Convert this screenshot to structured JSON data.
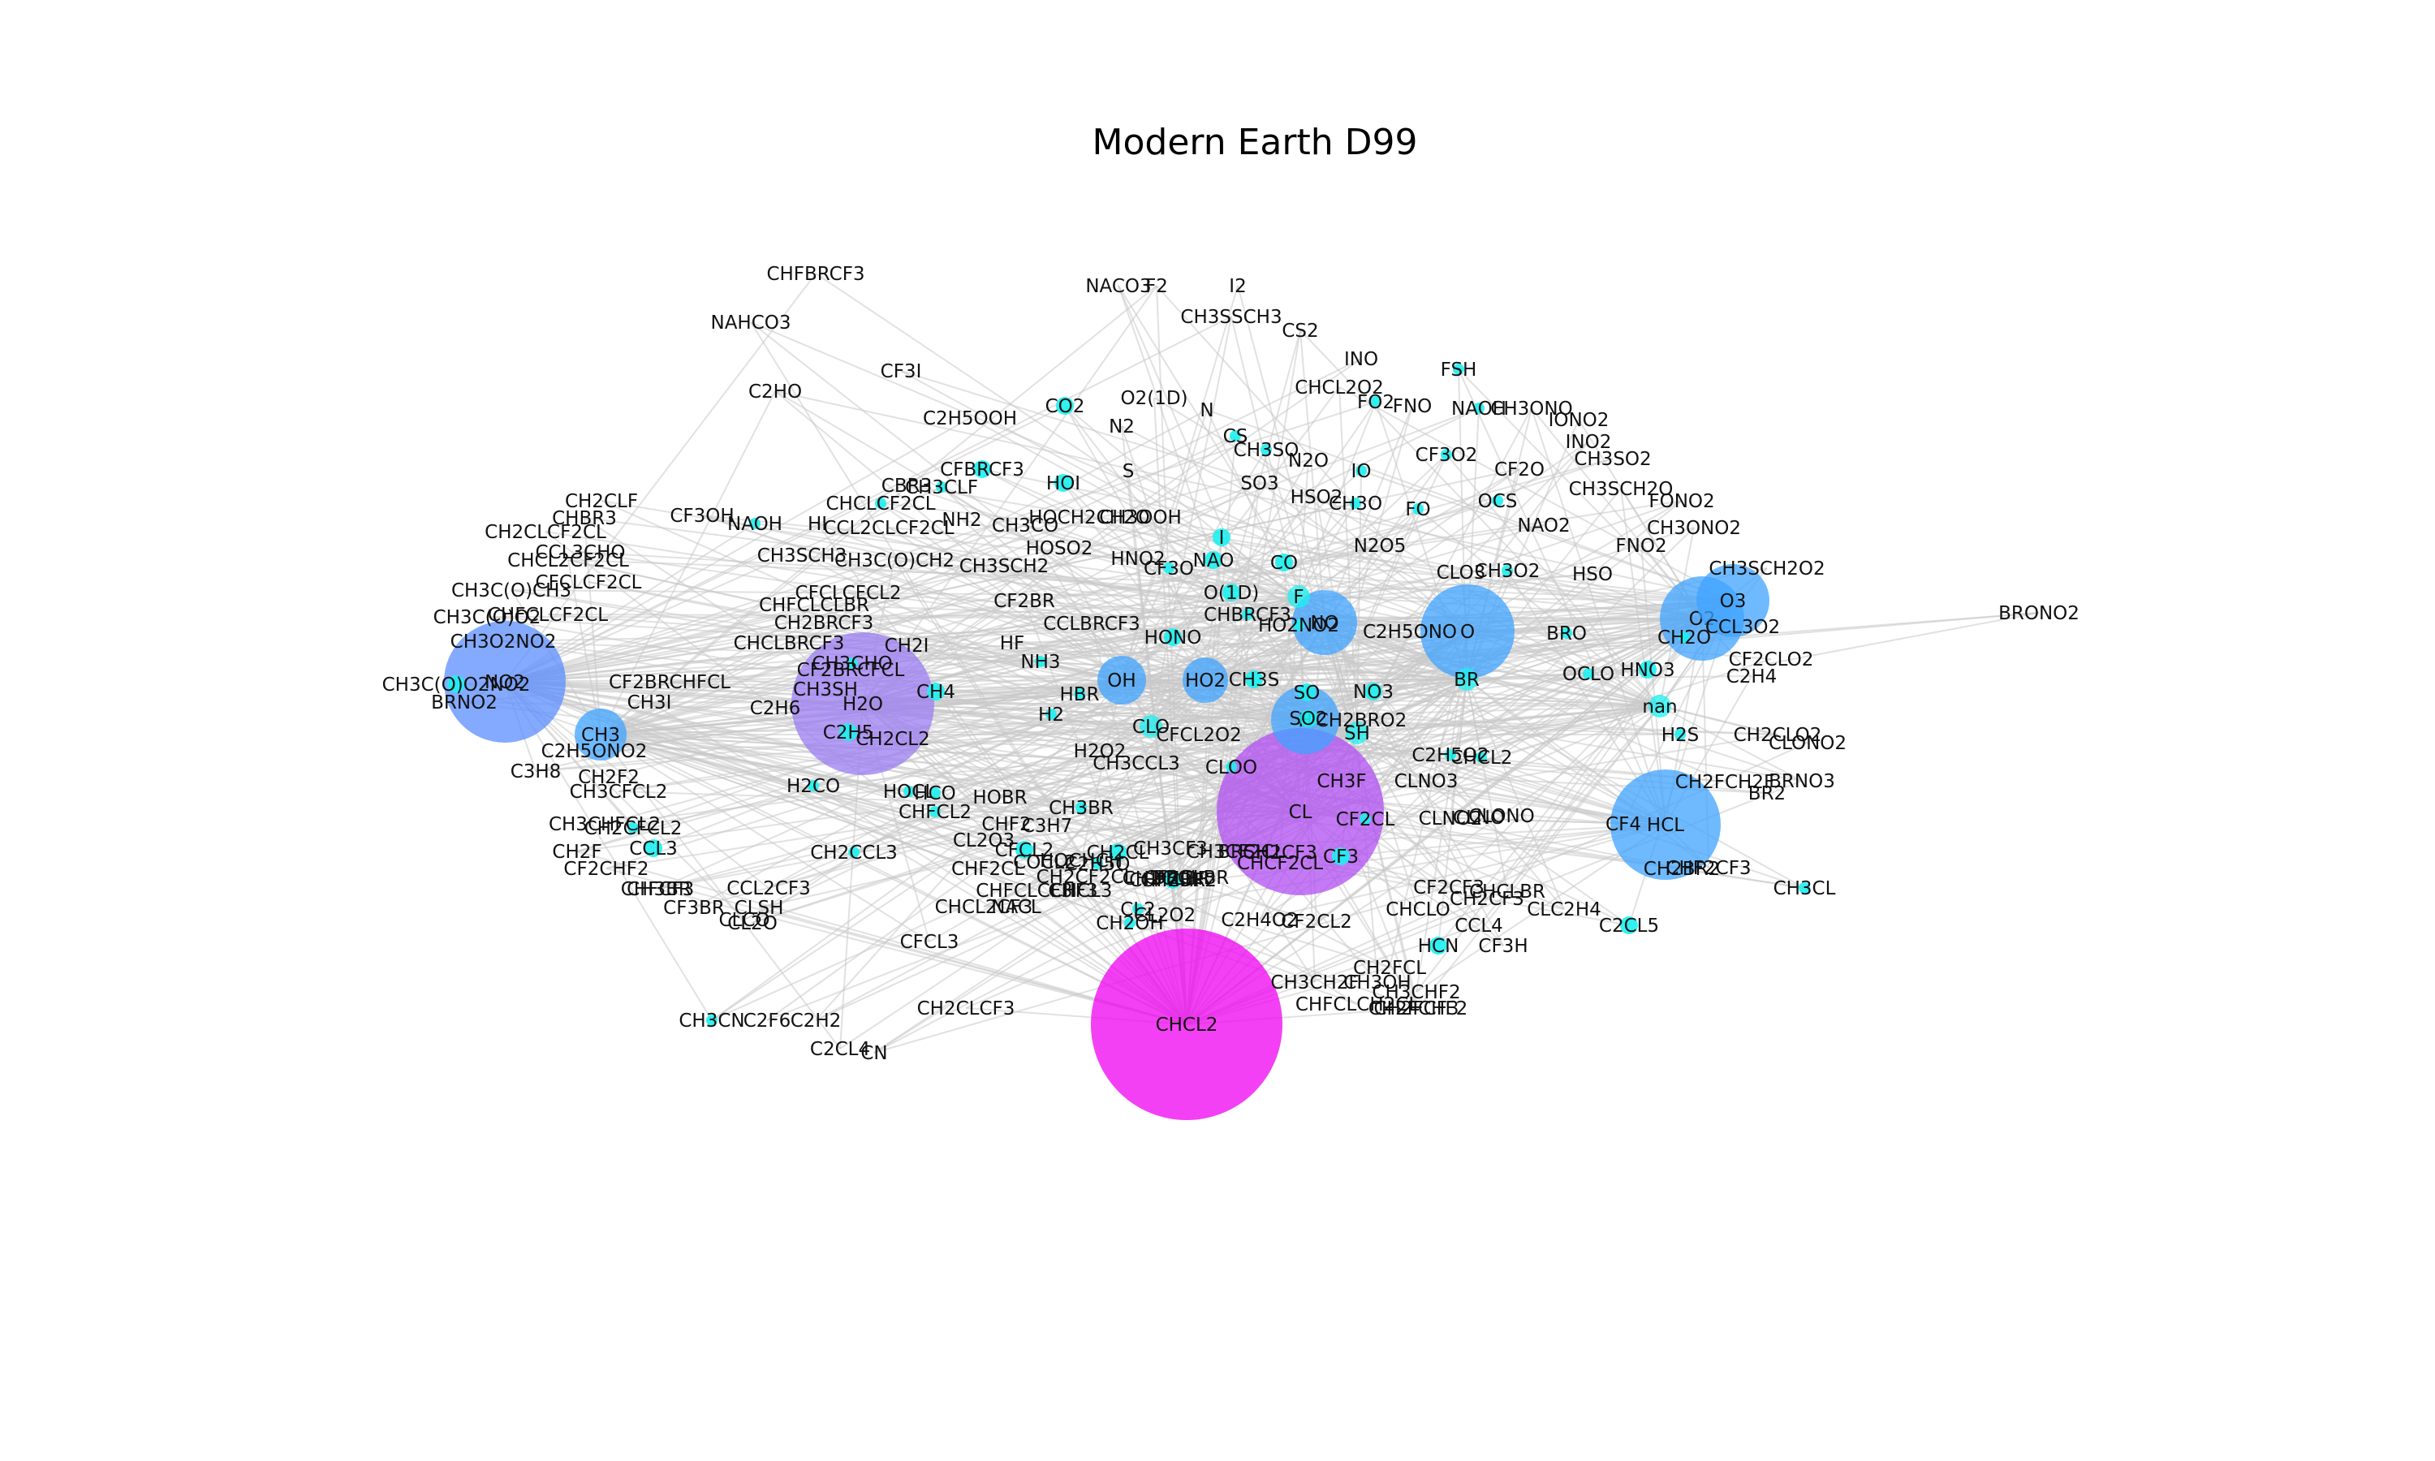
{
  "figure": {
    "title": "Modern Earth D99",
    "edge_color": "#c8c8c8",
    "palette": {
      "small": "#1ef0f0",
      "mid": "#3fa3ff",
      "large_blue": "#5b8dff",
      "purple": "#9b7cf2",
      "violet": "#b04ef2",
      "magenta": "#f000f0"
    }
  },
  "nodes": [
    {
      "label": "CHFBRCF3",
      "s": 0,
      "c": "#1ef0f0"
    },
    {
      "label": "NAHCO3",
      "s": 0,
      "c": "#1ef0f0"
    },
    {
      "label": "C2HO",
      "s": 0,
      "c": "#1ef0f0"
    },
    {
      "label": "CF3I",
      "s": 0,
      "c": "#1ef0f0"
    },
    {
      "label": "NACO3",
      "s": 0,
      "c": "#1ef0f0"
    },
    {
      "label": "F2",
      "s": 0,
      "c": "#1ef0f0"
    },
    {
      "label": "I2",
      "s": 0,
      "c": "#1ef0f0"
    },
    {
      "label": "CH3SSCH3",
      "s": 0,
      "c": "#1ef0f0"
    },
    {
      "label": "CS2",
      "s": 0,
      "c": "#1ef0f0"
    },
    {
      "label": "INO",
      "s": 0,
      "c": "#1ef0f0"
    },
    {
      "label": "FSH",
      "s": 1,
      "c": "#1ef0f0"
    },
    {
      "label": "CO2",
      "s": 2,
      "c": "#1ef0f0"
    },
    {
      "label": "O2(1D)",
      "s": 0,
      "c": "#1ef0f0"
    },
    {
      "label": "CHCL2O2",
      "s": 0,
      "c": "#1ef0f0"
    },
    {
      "label": "FO2",
      "s": 1,
      "c": "#1ef0f0"
    },
    {
      "label": "FNO",
      "s": 0,
      "c": "#1ef0f0"
    },
    {
      "label": "NAOH",
      "s": 1,
      "c": "#1ef0f0"
    },
    {
      "label": "CH3ONO",
      "s": 0,
      "c": "#1ef0f0"
    },
    {
      "label": "C2H5OOH",
      "s": 0,
      "c": "#1ef0f0"
    },
    {
      "label": "N2",
      "s": 0,
      "c": "#1ef0f0"
    },
    {
      "label": "N",
      "s": 0,
      "c": "#1ef0f0"
    },
    {
      "label": "IONO2",
      "s": 0,
      "c": "#1ef0f0"
    },
    {
      "label": "INO2",
      "s": 0,
      "c": "#1ef0f0"
    },
    {
      "label": "CS",
      "s": 1,
      "c": "#1ef0f0"
    },
    {
      "label": "CH3SO",
      "s": 1,
      "c": "#1ef0f0"
    },
    {
      "label": "N2O",
      "s": 0,
      "c": "#1ef0f0"
    },
    {
      "label": "CF3O2",
      "s": 1,
      "c": "#1ef0f0"
    },
    {
      "label": "CH3SO2",
      "s": 0,
      "c": "#1ef0f0"
    },
    {
      "label": "CFBRCF3",
      "s": 2,
      "c": "#1ef0f0"
    },
    {
      "label": "CH3CLF",
      "s": 1,
      "c": "#1ef0f0"
    },
    {
      "label": "S",
      "s": 0,
      "c": "#1ef0f0"
    },
    {
      "label": "IO",
      "s": 1,
      "c": "#1ef0f0"
    },
    {
      "label": "CF2O",
      "s": 0,
      "c": "#1ef0f0"
    },
    {
      "label": "CH2CLF",
      "s": 0,
      "c": "#1ef0f0"
    },
    {
      "label": "CHBR3",
      "s": 0,
      "c": "#1ef0f0"
    },
    {
      "label": "CF3OH",
      "s": 0,
      "c": "#1ef0f0"
    },
    {
      "label": "NAOH",
      "s": 1,
      "c": "#1ef0f0"
    },
    {
      "label": "HI",
      "s": 0,
      "c": "#1ef0f0"
    },
    {
      "label": "CHCLCF2CL",
      "s": 1,
      "c": "#1ef0f0"
    },
    {
      "label": "CBR3",
      "s": 0,
      "c": "#1ef0f0"
    },
    {
      "label": "HOI",
      "s": 2,
      "c": "#1ef0f0"
    },
    {
      "label": "SO3",
      "s": 0,
      "c": "#1ef0f0"
    },
    {
      "label": "HSO2",
      "s": 0,
      "c": "#1ef0f0"
    },
    {
      "label": "CH3O",
      "s": 1,
      "c": "#1ef0f0"
    },
    {
      "label": "FO",
      "s": 1,
      "c": "#1ef0f0"
    },
    {
      "label": "OCS",
      "s": 1,
      "c": "#1ef0f0"
    },
    {
      "label": "CH3SCH2O",
      "s": 0,
      "c": "#1ef0f0"
    },
    {
      "label": "FONO2",
      "s": 0,
      "c": "#1ef0f0"
    },
    {
      "label": "CH2CLCF2CL",
      "s": 0,
      "c": "#1ef0f0"
    },
    {
      "label": "CCL2CLCF2CL",
      "s": 0,
      "c": "#1ef0f0"
    },
    {
      "label": "CH3CO",
      "s": 0,
      "c": "#1ef0f0"
    },
    {
      "label": "NH2",
      "s": 0,
      "c": "#1ef0f0"
    },
    {
      "label": "HOCH2CH2O",
      "s": 0,
      "c": "#1ef0f0"
    },
    {
      "label": "CH3OOH",
      "s": 0,
      "c": "#1ef0f0"
    },
    {
      "label": "NAO2",
      "s": 0,
      "c": "#1ef0f0"
    },
    {
      "label": "CH3ONO2",
      "s": 0,
      "c": "#1ef0f0"
    },
    {
      "label": "CHCL2CF2CL",
      "s": 0,
      "c": "#1ef0f0"
    },
    {
      "label": "CCL3CHO",
      "s": 0,
      "c": "#1ef0f0"
    },
    {
      "label": "CH3SCH3",
      "s": 0,
      "c": "#1ef0f0"
    },
    {
      "label": "CH3C(O)CH2",
      "s": 0,
      "c": "#1ef0f0"
    },
    {
      "label": "CFCLCF2CL",
      "s": 0,
      "c": "#1ef0f0"
    },
    {
      "label": "HOSO2",
      "s": 0,
      "c": "#1ef0f0"
    },
    {
      "label": "I",
      "s": 2,
      "c": "#1ef0f0"
    },
    {
      "label": "N2O5",
      "s": 0,
      "c": "#1ef0f0"
    },
    {
      "label": "FNO2",
      "s": 0,
      "c": "#1ef0f0"
    },
    {
      "label": "CH3SCH2",
      "s": 0,
      "c": "#1ef0f0"
    },
    {
      "label": "HNO2",
      "s": 0,
      "c": "#1ef0f0"
    },
    {
      "label": "CF3O",
      "s": 1,
      "c": "#1ef0f0"
    },
    {
      "label": "NAO",
      "s": 2,
      "c": "#1ef0f0"
    },
    {
      "label": "CO",
      "s": 2,
      "c": "#1ef0f0"
    },
    {
      "label": "CLO3",
      "s": 0,
      "c": "#1ef0f0"
    },
    {
      "label": "CH3O2",
      "s": 1,
      "c": "#1ef0f0"
    },
    {
      "label": "HSO",
      "s": 0,
      "c": "#1ef0f0"
    },
    {
      "label": "CH3SCH2O2",
      "s": 0,
      "c": "#1ef0f0"
    },
    {
      "label": "CH3C(O)CH3",
      "s": 0,
      "c": "#1ef0f0"
    },
    {
      "label": "CHFCLCF2CL",
      "s": 0,
      "c": "#1ef0f0"
    },
    {
      "label": "CFCLCFCL2",
      "s": 0,
      "c": "#1ef0f0"
    },
    {
      "label": "CF2BR",
      "s": 0,
      "c": "#1ef0f0"
    },
    {
      "label": "O(1D)",
      "s": 2,
      "c": "#1ef0f0"
    },
    {
      "label": "F",
      "s": 3,
      "c": "#1ef0f0"
    },
    {
      "label": "O3",
      "s": 4,
      "c": "#3fa3ff"
    },
    {
      "label": "BRONO2",
      "s": 0,
      "c": "#1ef0f0"
    },
    {
      "label": "CH3C(O)O2",
      "s": 0,
      "c": "#1ef0f0"
    },
    {
      "label": "CHFCLCLBR",
      "s": 0,
      "c": "#1ef0f0"
    },
    {
      "label": "CHBRCF3",
      "s": 1,
      "c": "#1ef0f0"
    },
    {
      "label": "HO2NO2",
      "s": 1,
      "c": "#1ef0f0"
    },
    {
      "label": "NO",
      "s": 4,
      "c": "#3fa3ff"
    },
    {
      "label": "O2",
      "s": 5,
      "c": "#3fa3ff"
    },
    {
      "label": "CCL3O2",
      "s": 0,
      "c": "#1ef0f0"
    },
    {
      "label": "CH3O2NO2",
      "s": 0,
      "c": "#1ef0f0"
    },
    {
      "label": "CH2BRCF3",
      "s": 0,
      "c": "#1ef0f0"
    },
    {
      "label": "CCLBRCF3",
      "s": 0,
      "c": "#1ef0f0"
    },
    {
      "label": "HONO",
      "s": 2,
      "c": "#1ef0f0"
    },
    {
      "label": "O",
      "s": 5,
      "c": "#3fa3ff"
    },
    {
      "label": "BRO",
      "s": 1,
      "c": "#1ef0f0"
    },
    {
      "label": "CH2O",
      "s": 1,
      "c": "#1ef0f0"
    },
    {
      "label": "C2H5ONO",
      "s": 0,
      "c": "#1ef0f0"
    },
    {
      "label": "NO2",
      "s": 6,
      "c": "#5b8dff"
    },
    {
      "label": "CHCLBRCF3",
      "s": 0,
      "c": "#1ef0f0"
    },
    {
      "label": "CH2I",
      "s": 0,
      "c": "#1ef0f0"
    },
    {
      "label": "HF",
      "s": 0,
      "c": "#1ef0f0"
    },
    {
      "label": "CH3CHO",
      "s": 1,
      "c": "#1ef0f0"
    },
    {
      "label": "CF2BRCFCL",
      "s": 0,
      "c": "#1ef0f0"
    },
    {
      "label": "NH3",
      "s": 1,
      "c": "#1ef0f0"
    },
    {
      "label": "HNO3",
      "s": 2,
      "c": "#1ef0f0"
    },
    {
      "label": "CF2CLO2",
      "s": 0,
      "c": "#1ef0f0"
    },
    {
      "label": "CH3C(O)O2NO2",
      "s": 2,
      "c": "#1ef0f0"
    },
    {
      "label": "CF2BRCHFCL",
      "s": 0,
      "c": "#1ef0f0"
    },
    {
      "label": "CH3SH",
      "s": 0,
      "c": "#1ef0f0"
    },
    {
      "label": "CH4",
      "s": 2,
      "c": "#1ef0f0"
    },
    {
      "label": "HBR",
      "s": 1,
      "c": "#1ef0f0"
    },
    {
      "label": "OH",
      "s": 3,
      "c": "#3fa3ff"
    },
    {
      "label": "HO2",
      "s": 3,
      "c": "#3fa3ff"
    },
    {
      "label": "CH3S",
      "s": 2,
      "c": "#1ef0f0"
    },
    {
      "label": "SO",
      "s": 2,
      "c": "#1ef0f0"
    },
    {
      "label": "NO3",
      "s": 2,
      "c": "#1ef0f0"
    },
    {
      "label": "BR",
      "s": 3,
      "c": "#1ef0f0"
    },
    {
      "label": "OCLO",
      "s": 1,
      "c": "#1ef0f0"
    },
    {
      "label": "C2H4",
      "s": 0,
      "c": "#1ef0f0"
    },
    {
      "label": "BRNO2",
      "s": 0,
      "c": "#1ef0f0"
    },
    {
      "label": "CH3I",
      "s": 0,
      "c": "#1ef0f0"
    },
    {
      "label": "C2H6",
      "s": 0,
      "c": "#1ef0f0"
    },
    {
      "label": "H2O",
      "s": 8,
      "c": "#9b7cf2"
    },
    {
      "label": "H2",
      "s": 1,
      "c": "#1ef0f0"
    },
    {
      "label": "H",
      "s": 3,
      "c": "#3fa3ff"
    },
    {
      "label": "SO2",
      "s": 2,
      "c": "#1ef0f0"
    },
    {
      "label": "CH2BRO2",
      "s": 0,
      "c": "#1ef0f0"
    },
    {
      "label": "SH",
      "s": 3,
      "c": "#1ef0f0"
    },
    {
      "label": "nan",
      "s": 3,
      "c": "#1ef0f0"
    },
    {
      "label": "CLO",
      "s": 3,
      "c": "#1ef0f0"
    },
    {
      "label": "CFCL2O2",
      "s": 0,
      "c": "#1ef0f0"
    },
    {
      "label": "CH3",
      "s": 3,
      "c": "#3fa3ff"
    },
    {
      "label": "C2H5",
      "s": 2,
      "c": "#1ef0f0"
    },
    {
      "label": "CH2CL2",
      "s": 0,
      "c": "#1ef0f0"
    },
    {
      "label": "H2O2",
      "s": 0,
      "c": "#1ef0f0"
    },
    {
      "label": "H2S",
      "s": 1,
      "c": "#1ef0f0"
    },
    {
      "label": "CHCL2",
      "s": 1,
      "c": "#1ef0f0"
    },
    {
      "label": "CH2CLO2",
      "s": 0,
      "c": "#1ef0f0"
    },
    {
      "label": "CLONO2",
      "s": 0,
      "c": "#1ef0f0"
    },
    {
      "label": "C2H5ONO2",
      "s": 0,
      "c": "#1ef0f0"
    },
    {
      "label": "C3H8",
      "s": 0,
      "c": "#1ef0f0"
    },
    {
      "label": "CH3CCL3",
      "s": 0,
      "c": "#1ef0f0"
    },
    {
      "label": "C2H5O2",
      "s": 1,
      "c": "#1ef0f0"
    },
    {
      "label": "CLNO3",
      "s": 0,
      "c": "#1ef0f0"
    },
    {
      "label": "CH2F2",
      "s": 0,
      "c": "#1ef0f0"
    },
    {
      "label": "H2CO",
      "s": 1,
      "c": "#1ef0f0"
    },
    {
      "label": "HOCL",
      "s": 1,
      "c": "#1ef0f0"
    },
    {
      "label": "HCO",
      "s": 1,
      "c": "#1ef0f0"
    },
    {
      "label": "HOBR",
      "s": 0,
      "c": "#1ef0f0"
    },
    {
      "label": "CLOO",
      "s": 1,
      "c": "#1ef0f0"
    },
    {
      "label": "CH3F",
      "s": 0,
      "c": "#1ef0f0"
    },
    {
      "label": "CH2FCH2F",
      "s": 0,
      "c": "#1ef0f0"
    },
    {
      "label": "BRNO3",
      "s": 0,
      "c": "#1ef0f0"
    },
    {
      "label": "BR2",
      "s": 0,
      "c": "#1ef0f0"
    },
    {
      "label": "CH3CFCL2",
      "s": 0,
      "c": "#1ef0f0"
    },
    {
      "label": "CHFCL2",
      "s": 1,
      "c": "#1ef0f0"
    },
    {
      "label": "CH3BR",
      "s": 1,
      "c": "#1ef0f0"
    },
    {
      "label": "C3H7",
      "s": 0,
      "c": "#1ef0f0"
    },
    {
      "label": "CHF2",
      "s": 0,
      "c": "#1ef0f0"
    },
    {
      "label": "CL",
      "s": 9,
      "c": "#b04ef2"
    },
    {
      "label": "CF2CL",
      "s": 1,
      "c": "#1ef0f0"
    },
    {
      "label": "CLNO2",
      "s": 0,
      "c": "#1ef0f0"
    },
    {
      "label": "CLNO",
      "s": 0,
      "c": "#1ef0f0"
    },
    {
      "label": "CLONO",
      "s": 0,
      "c": "#1ef0f0"
    },
    {
      "label": "CF4",
      "s": 0,
      "c": "#1ef0f0"
    },
    {
      "label": "HCL",
      "s": 6,
      "c": "#3fa3ff"
    },
    {
      "label": "CH2CCL3",
      "s": 1,
      "c": "#1ef0f0"
    },
    {
      "label": "CH3CF3",
      "s": 0,
      "c": "#1ef0f0"
    },
    {
      "label": "CH3CHFCL2",
      "s": 0,
      "c": "#1ef0f0"
    },
    {
      "label": "CH2CFCL2",
      "s": 1,
      "c": "#1ef0f0"
    },
    {
      "label": "CH2F",
      "s": 0,
      "c": "#1ef0f0"
    },
    {
      "label": "CFCL2",
      "s": 2,
      "c": "#1ef0f0"
    },
    {
      "label": "CH2CL",
      "s": 2,
      "c": "#1ef0f0"
    },
    {
      "label": "CL2O3",
      "s": 0,
      "c": "#1ef0f0"
    },
    {
      "label": "CHF2CL",
      "s": 0,
      "c": "#1ef0f0"
    },
    {
      "label": "CH3CF2CL",
      "s": 0,
      "c": "#1ef0f0"
    },
    {
      "label": "CH2CF3",
      "s": 0,
      "c": "#1ef0f0"
    },
    {
      "label": "CHFCHF2",
      "s": 0,
      "c": "#1ef0f0"
    },
    {
      "label": "CHCF2CL",
      "s": 0,
      "c": "#1ef0f0"
    },
    {
      "label": "CF3",
      "s": 2,
      "c": "#1ef0f0"
    },
    {
      "label": "CCL3",
      "s": 2,
      "c": "#1ef0f0"
    },
    {
      "label": "CF2CHF2",
      "s": 0,
      "c": "#1ef0f0"
    },
    {
      "label": "HOCHCH",
      "s": 0,
      "c": "#1ef0f0"
    },
    {
      "label": "CH2CF2CL",
      "s": 0,
      "c": "#1ef0f0"
    },
    {
      "label": "CH2BR",
      "s": 2,
      "c": "#1ef0f0"
    },
    {
      "label": "BRCL",
      "s": 0,
      "c": "#1ef0f0"
    },
    {
      "label": "CF2CLBR",
      "s": 0,
      "c": "#1ef0f0"
    },
    {
      "label": "BRSH",
      "s": 0,
      "c": "#1ef0f0"
    },
    {
      "label": "CH2CF3",
      "s": 0,
      "c": "#1ef0f0"
    },
    {
      "label": "CH2BR2",
      "s": 0,
      "c": "#1ef0f0"
    },
    {
      "label": "CHF2CF3",
      "s": 0,
      "c": "#1ef0f0"
    },
    {
      "label": "CH3CL",
      "s": 1,
      "c": "#1ef0f0"
    },
    {
      "label": "CHFCF3",
      "s": 0,
      "c": "#1ef0f0"
    },
    {
      "label": "CH3BR",
      "s": 0,
      "c": "#1ef0f0"
    },
    {
      "label": "CCL2CF3",
      "s": 0,
      "c": "#1ef0f0"
    },
    {
      "label": "COCL2",
      "s": 0,
      "c": "#1ef0f0"
    },
    {
      "label": "C2H5O",
      "s": 1,
      "c": "#1ef0f0"
    },
    {
      "label": "CHCL2CF3",
      "s": 0,
      "c": "#1ef0f0"
    },
    {
      "label": "CHFCLCF3",
      "s": 0,
      "c": "#1ef0f0"
    },
    {
      "label": "CHCL3",
      "s": 0,
      "c": "#1ef0f0"
    },
    {
      "label": "CF2CF3",
      "s": 0,
      "c": "#1ef0f0"
    },
    {
      "label": "CHCLBR",
      "s": 0,
      "c": "#1ef0f0"
    },
    {
      "label": "CH2CLBR",
      "s": 0,
      "c": "#1ef0f0"
    },
    {
      "label": "CHF3",
      "s": 0,
      "c": "#1ef0f0"
    },
    {
      "label": "CF3BR",
      "s": 0,
      "c": "#1ef0f0"
    },
    {
      "label": "CLCO",
      "s": 0,
      "c": "#1ef0f0"
    },
    {
      "label": "NACL",
      "s": 0,
      "c": "#1ef0f0"
    },
    {
      "label": "CH2OH",
      "s": 1,
      "c": "#1ef0f0"
    },
    {
      "label": "CL2",
      "s": 1,
      "c": "#1ef0f0"
    },
    {
      "label": "CL2O2",
      "s": 0,
      "c": "#1ef0f0"
    },
    {
      "label": "CLSH",
      "s": 0,
      "c": "#1ef0f0"
    },
    {
      "label": "CL2O",
      "s": 0,
      "c": "#1ef0f0"
    },
    {
      "label": "CLC2H4",
      "s": 0,
      "c": "#1ef0f0"
    },
    {
      "label": "CHCLO",
      "s": 0,
      "c": "#1ef0f0"
    },
    {
      "label": "CFCL3",
      "s": 0,
      "c": "#1ef0f0"
    },
    {
      "label": "C2H4O2",
      "s": 0,
      "c": "#1ef0f0"
    },
    {
      "label": "CF2CL2",
      "s": 0,
      "c": "#1ef0f0"
    },
    {
      "label": "CCL4",
      "s": 0,
      "c": "#1ef0f0"
    },
    {
      "label": "C2CL5",
      "s": 2,
      "c": "#1ef0f0"
    },
    {
      "label": "HCN",
      "s": 2,
      "c": "#1ef0f0"
    },
    {
      "label": "CF3H",
      "s": 0,
      "c": "#1ef0f0"
    },
    {
      "label": "CH2FCL",
      "s": 0,
      "c": "#1ef0f0"
    },
    {
      "label": "CH3OH",
      "s": 0,
      "c": "#1ef0f0"
    },
    {
      "label": "CH3CH2F",
      "s": 0,
      "c": "#1ef0f0"
    },
    {
      "label": "CH2FCHF2",
      "s": 0,
      "c": "#1ef0f0"
    },
    {
      "label": "CHFCLCH2CL",
      "s": 0,
      "c": "#1ef0f0"
    },
    {
      "label": "CH3CHF2",
      "s": 0,
      "c": "#1ef0f0"
    },
    {
      "label": "CH2FCF3",
      "s": 0,
      "c": "#1ef0f0"
    },
    {
      "label": "CH2CLCF3",
      "s": 0,
      "c": "#1ef0f0"
    },
    {
      "label": "C2H2",
      "s": 0,
      "c": "#1ef0f0"
    },
    {
      "label": "CH3CN",
      "s": 1,
      "c": "#1ef0f0"
    },
    {
      "label": "C2F6",
      "s": 0,
      "c": "#1ef0f0"
    },
    {
      "label": "C2CL4",
      "s": 0,
      "c": "#1ef0f0"
    },
    {
      "label": "CN",
      "s": 0,
      "c": "#1ef0f0"
    },
    {
      "label": "CHCL2",
      "s": 10,
      "c": "#f000f0"
    }
  ]
}
